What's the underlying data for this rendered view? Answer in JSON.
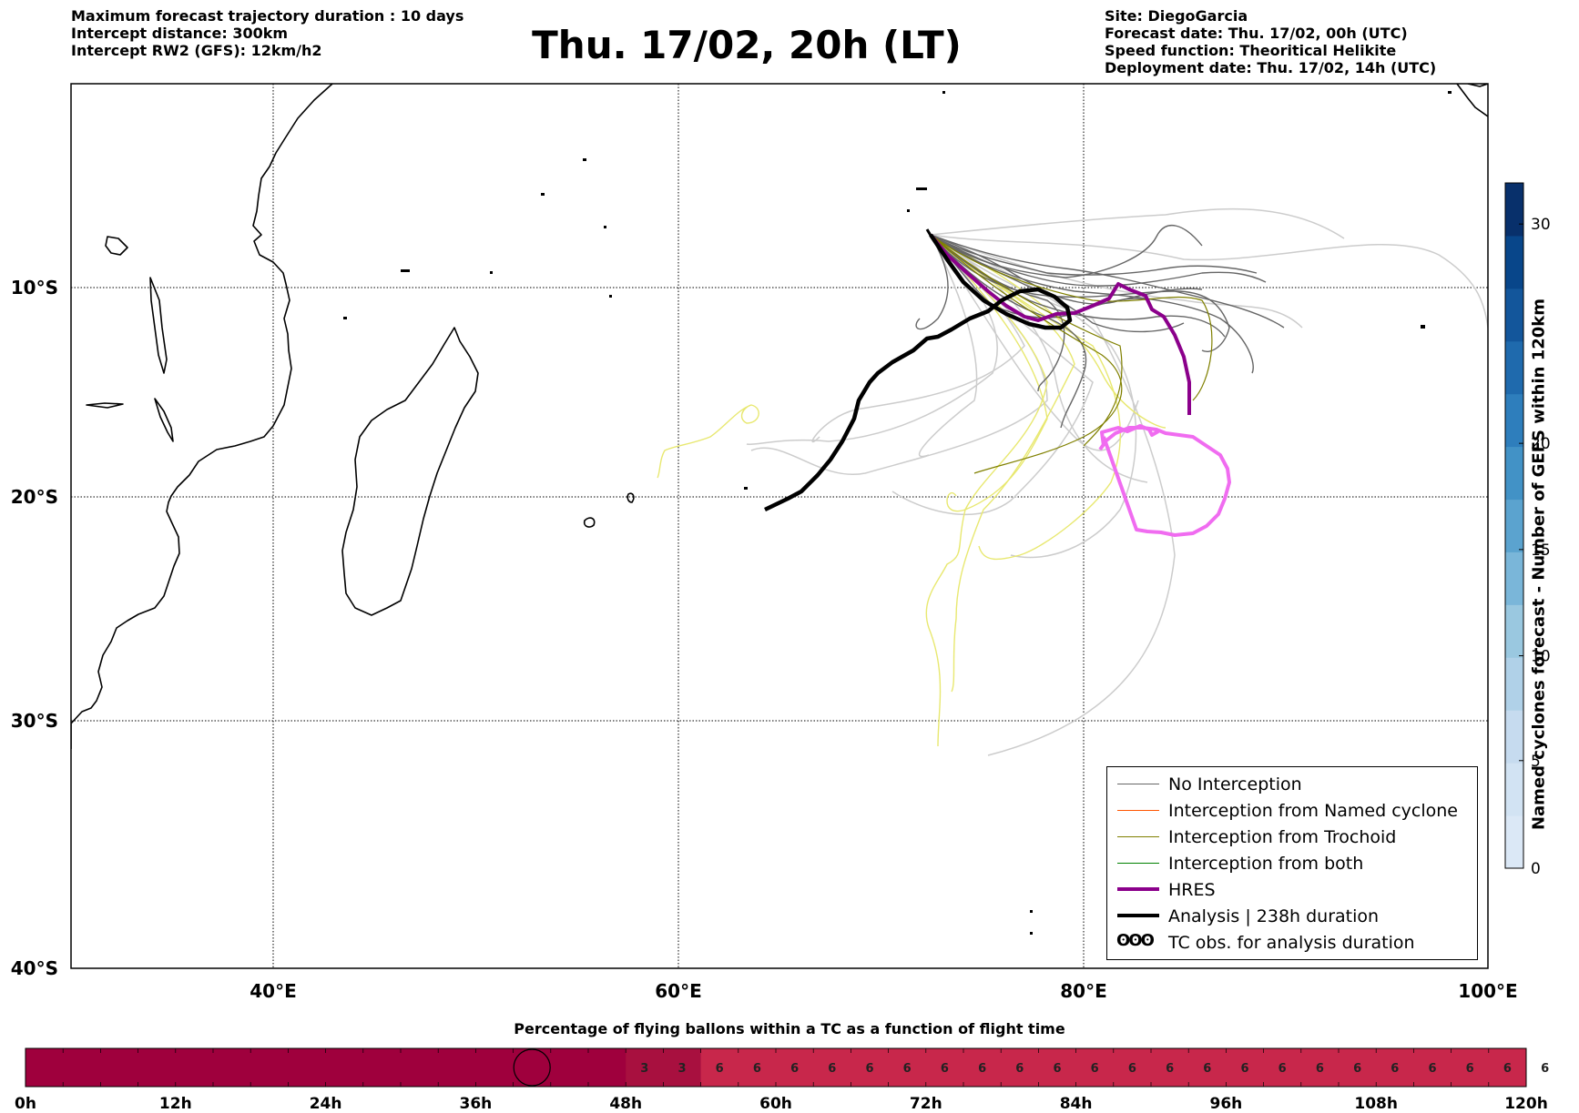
{
  "header": {
    "left_lines": [
      "Maximum forecast trajectory duration : 10 days",
      "Intercept distance: 300km",
      "Intercept RW2 (GFS):  12km/h2"
    ],
    "title": "Thu. 17/02, 20h (LT)",
    "right_lines": [
      "Site: DiegoGarcia",
      "Forecast date: Thu. 17/02, 00h (UTC)",
      "Speed function: Theoritical Helikite",
      "Deployment date: Thu. 17/02, 14h (UTC)"
    ]
  },
  "map": {
    "lon_range": [
      30,
      100
    ],
    "lat_range": [
      -40,
      0
    ],
    "lon_ticks": [
      {
        "value": 40,
        "label": "40°E"
      },
      {
        "value": 60,
        "label": "60°E"
      },
      {
        "value": 80,
        "label": "80°E"
      },
      {
        "value": 100,
        "label": "100°E"
      }
    ],
    "lat_ticks": [
      {
        "value": -10,
        "label": "10°S"
      },
      {
        "value": -20,
        "label": "20°S"
      },
      {
        "value": -30,
        "label": "30°S"
      },
      {
        "value": -40,
        "label": "40°S"
      }
    ],
    "grid": "dotted",
    "launch_site": {
      "lon": 72.4,
      "lat": -7.3
    }
  },
  "colors": {
    "no_interception": "#666666",
    "named_cyclone": "#ff5500",
    "trochoid": "#808000",
    "both": "#008000",
    "hres": "#8b008b",
    "analysis": "#000000",
    "tc_obs": "#f06cf0",
    "light_members": "#cccccc",
    "yellow_members": "#e8e870"
  },
  "legend": {
    "items": [
      {
        "label": "No Interception",
        "icon": "thin-gray-line"
      },
      {
        "label": "Interception from Named cyclone",
        "icon": "thin-orange-line"
      },
      {
        "label": "Interception from Trochoid",
        "icon": "thin-olive-line"
      },
      {
        "label": "Interception from both",
        "icon": "thin-green-line"
      },
      {
        "label": "HRES",
        "icon": "thick-purple-line"
      },
      {
        "label": "Analysis | 238h duration",
        "icon": "thick-black-line"
      },
      {
        "label": "TC obs. for analysis duration",
        "icon": "cyclone-symbol-icon",
        "symbol": "ʘʘʘ"
      }
    ]
  },
  "colorbar": {
    "title": "Named cyclones forecast - Number of GEFS within 120km",
    "ticks": [
      "0",
      "5",
      "10",
      "15",
      "20",
      "30"
    ],
    "range": [
      0,
      32
    ],
    "scale": "nonlinear",
    "colors": [
      "#dbe8f6",
      "#d2e3f3",
      "#c6dbef",
      "#b0d1e8",
      "#9ac8e0",
      "#7ab6d9",
      "#5ba3cf",
      "#4292c6",
      "#2e7ebc",
      "#1f6aad",
      "#13569b",
      "#08468a",
      "#08306b"
    ]
  },
  "chart_data": {
    "type": "heatmap",
    "title": "Percentage of flying ballons within a TC as a function of flight time",
    "x_ticks": [
      "0h",
      "12h",
      "24h",
      "36h",
      "48h",
      "60h",
      "72h",
      "84h",
      "96h",
      "108h",
      "120h"
    ],
    "x_range_hours": [
      0,
      120
    ],
    "segments": [
      {
        "from_h": 0,
        "to_h": 48,
        "value": null,
        "color": "#9f003d"
      },
      {
        "from_h": 48,
        "to_h": 54,
        "value": 3,
        "color": "#a8103f"
      },
      {
        "from_h": 54,
        "to_h": 120,
        "value": 6,
        "color": "#c8274b"
      }
    ],
    "cell_values": [
      "3",
      "3",
      "6",
      "6",
      "6",
      "6",
      "6",
      "6",
      "6",
      "6",
      "6",
      "6",
      "6",
      "6",
      "6",
      "6",
      "6",
      "6",
      "6",
      "6",
      "6",
      "6",
      "6",
      "6",
      "6",
      "6",
      "6",
      "6",
      "6",
      "6",
      "6",
      "6",
      "6"
    ],
    "current_time_marker_h": 40.5
  }
}
